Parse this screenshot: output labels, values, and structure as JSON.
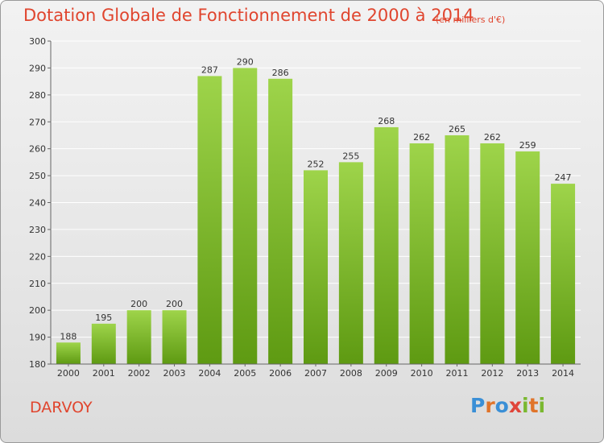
{
  "header": {
    "title": "Dotation Globale de Fonctionnement de 2000 à 2014",
    "unit": "(en milliers d'€)"
  },
  "footer": {
    "commune": "DARVOY",
    "brand_letters": [
      "P",
      "r",
      "o",
      "x",
      "i",
      "t",
      "i"
    ],
    "brand_colors": [
      "#3a8fd6",
      "#e0742a",
      "#3a8fd6",
      "#e0453a",
      "#7ab830",
      "#e0742a",
      "#7ab830"
    ]
  },
  "chart_data": {
    "type": "bar",
    "title": "Dotation Globale de Fonctionnement de 2000 à 2014",
    "subtitle": "(en milliers d'€)",
    "categories": [
      "2000",
      "2001",
      "2002",
      "2003",
      "2004",
      "2005",
      "2006",
      "2007",
      "2008",
      "2009",
      "2010",
      "2011",
      "2012",
      "2013",
      "2014"
    ],
    "values": [
      188,
      195,
      200,
      200,
      287,
      290,
      286,
      252,
      255,
      268,
      262,
      265,
      262,
      259,
      247
    ],
    "ylim": [
      180,
      300
    ],
    "yticks": [
      180,
      190,
      200,
      210,
      220,
      230,
      240,
      250,
      260,
      270,
      280,
      290,
      300
    ],
    "grid": true,
    "colors": {
      "bar_top": "#9ed44a",
      "bar_bottom": "#5e9a12",
      "grid": "#ffffff",
      "axis": "#666666"
    }
  }
}
